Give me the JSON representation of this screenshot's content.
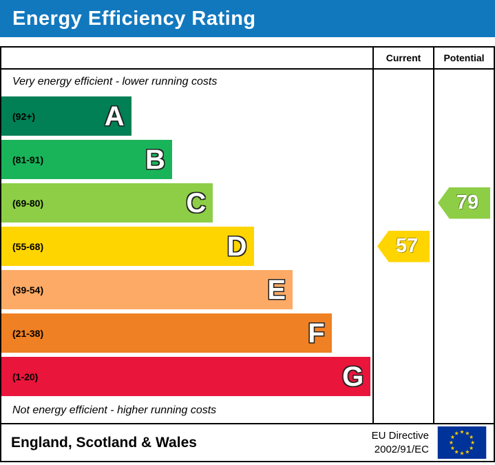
{
  "banner": {
    "title": "Energy Efficiency Rating",
    "bg": "#1278be"
  },
  "table": {
    "current_label": "Current",
    "potential_label": "Potential",
    "top_note": "Very energy efficient - lower running costs",
    "bottom_note": "Not energy efficient - higher running costs"
  },
  "chart_data": {
    "type": "bar",
    "title": "Energy Efficiency Rating",
    "bands": [
      {
        "letter": "A",
        "range": "(92+)",
        "color": "#008054",
        "width_pct": 35
      },
      {
        "letter": "B",
        "range": "(81-91)",
        "color": "#19b459",
        "width_pct": 46
      },
      {
        "letter": "C",
        "range": "(69-80)",
        "color": "#8dce46",
        "width_pct": 57
      },
      {
        "letter": "D",
        "range": "(55-68)",
        "color": "#ffd500",
        "width_pct": 68
      },
      {
        "letter": "E",
        "range": "(39-54)",
        "color": "#fcaa65",
        "width_pct": 78.5
      },
      {
        "letter": "F",
        "range": "(21-38)",
        "color": "#ef8023",
        "width_pct": 89
      },
      {
        "letter": "G",
        "range": "(1-20)",
        "color": "#e9153b",
        "width_pct": 99.5
      }
    ],
    "current": {
      "value": 57,
      "band_index": 3,
      "color": "#ffd500"
    },
    "potential": {
      "value": 79,
      "band_index": 2,
      "color": "#8dce46"
    }
  },
  "footer": {
    "region": "England, Scotland & Wales",
    "directive_line1": "EU Directive",
    "directive_line2": "2002/91/EC"
  }
}
